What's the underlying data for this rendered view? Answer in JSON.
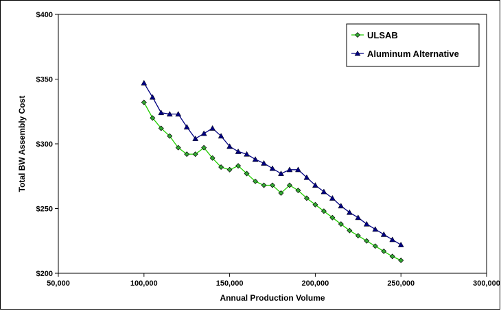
{
  "chart_data": {
    "type": "line",
    "title": "",
    "xlabel": "Annual Production Volume",
    "ylabel": "Total BW Assembly Cost",
    "xlim": [
      50000,
      300000
    ],
    "ylim": [
      200,
      400
    ],
    "x_ticks": [
      {
        "value": 50000,
        "label": "50,000"
      },
      {
        "value": 100000,
        "label": "100,000"
      },
      {
        "value": 150000,
        "label": "150,000"
      },
      {
        "value": 200000,
        "label": "200,000"
      },
      {
        "value": 250000,
        "label": "250,000"
      },
      {
        "value": 300000,
        "label": "300,000"
      }
    ],
    "y_ticks": [
      {
        "value": 200,
        "label": "$200"
      },
      {
        "value": 250,
        "label": "$250"
      },
      {
        "value": 300,
        "label": "$300"
      },
      {
        "value": 350,
        "label": "$350"
      },
      {
        "value": 400,
        "label": "$400"
      }
    ],
    "grid": false,
    "legend_position": "top-right",
    "x": [
      100000,
      105000,
      110000,
      115000,
      120000,
      125000,
      130000,
      135000,
      140000,
      145000,
      150000,
      155000,
      160000,
      165000,
      170000,
      175000,
      180000,
      185000,
      190000,
      195000,
      200000,
      205000,
      210000,
      215000,
      220000,
      225000,
      230000,
      235000,
      240000,
      245000,
      250000
    ],
    "series": [
      {
        "name": "ULSAB",
        "line_color": "#22cc00",
        "marker": "diamond",
        "marker_color": "#33aa33",
        "values": [
          332,
          320,
          312,
          306,
          297,
          292,
          292,
          297,
          289,
          282,
          280,
          283,
          277,
          271,
          268,
          268,
          262,
          268,
          264,
          258,
          253,
          248,
          243,
          238,
          233,
          229,
          225,
          221,
          217,
          213,
          210
        ]
      },
      {
        "name": "Aluminum Alternative",
        "line_color": "#000080",
        "marker": "triangle",
        "marker_color": "#000080",
        "values": [
          347,
          336,
          324,
          323,
          323,
          313,
          304,
          308,
          312,
          306,
          298,
          294,
          292,
          288,
          285,
          281,
          277,
          280,
          280,
          274,
          268,
          263,
          258,
          252,
          247,
          243,
          238,
          234,
          230,
          226,
          222
        ]
      }
    ]
  }
}
